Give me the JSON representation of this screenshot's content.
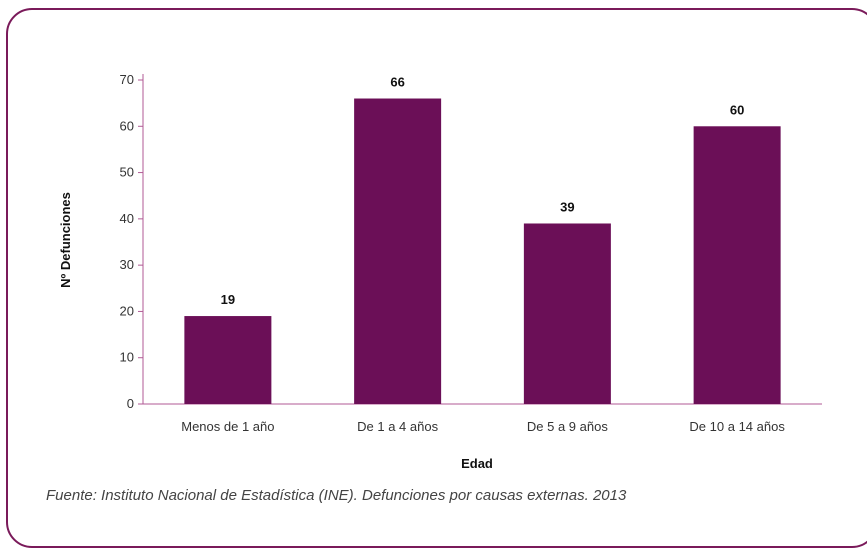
{
  "chart_data": {
    "type": "bar",
    "categories": [
      "Menos de 1 año",
      "De 1 a 4 años",
      "De 5 a 9 años",
      "De 10 a 14 años"
    ],
    "values": [
      19,
      66,
      39,
      60
    ],
    "data_labels": [
      "19",
      "66",
      "39",
      "60"
    ],
    "title": "",
    "xlabel": "Edad",
    "ylabel": "Nº Defunciones",
    "ylim": [
      0,
      70
    ],
    "yticks": [
      0,
      10,
      20,
      30,
      40,
      50,
      60,
      70
    ],
    "grid": false,
    "bar_color": "#6b0f57",
    "axis_color": "#b05a94"
  },
  "source": "Fuente: Instituto Nacional de Estadística (INE). Defunciones por causas externas. 2013",
  "colors": {
    "frame": "#7a1a5a"
  }
}
